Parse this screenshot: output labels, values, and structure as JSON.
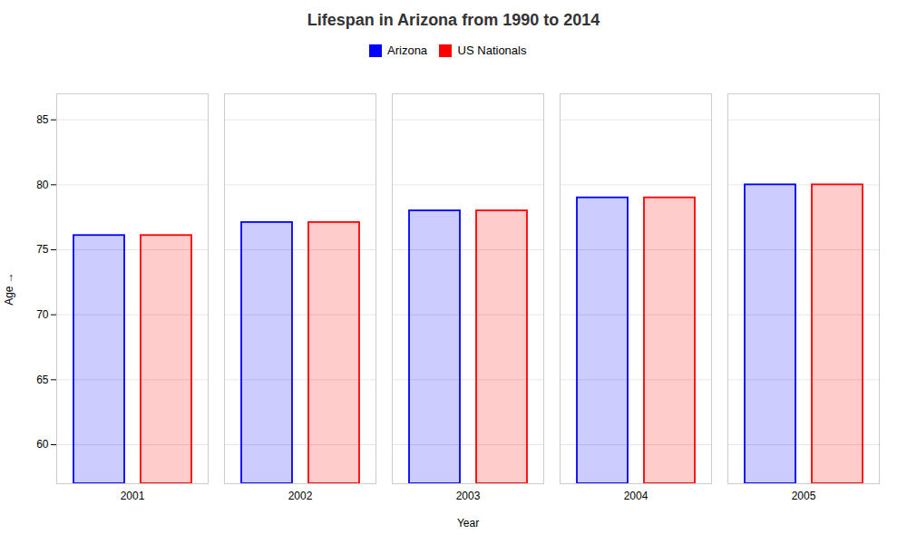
{
  "chart_data": {
    "type": "bar",
    "title": "Lifespan in Arizona from 1990 to 2014",
    "xlabel": "Year",
    "ylabel": "Age",
    "categories": [
      2001,
      2002,
      2003,
      2004,
      2005
    ],
    "series": [
      {
        "name": "Arizona",
        "color": "#0000ff",
        "values": [
          76.1,
          77.1,
          78.0,
          79.0,
          80.0
        ]
      },
      {
        "name": "US Nationals",
        "color": "#ff0000",
        "values": [
          76.1,
          77.1,
          78.0,
          79.0,
          80.0
        ]
      }
    ],
    "ylim": [
      57,
      87
    ],
    "yticks": [
      60,
      65,
      70,
      75,
      80,
      85
    ],
    "grid": true,
    "legend": "top"
  }
}
